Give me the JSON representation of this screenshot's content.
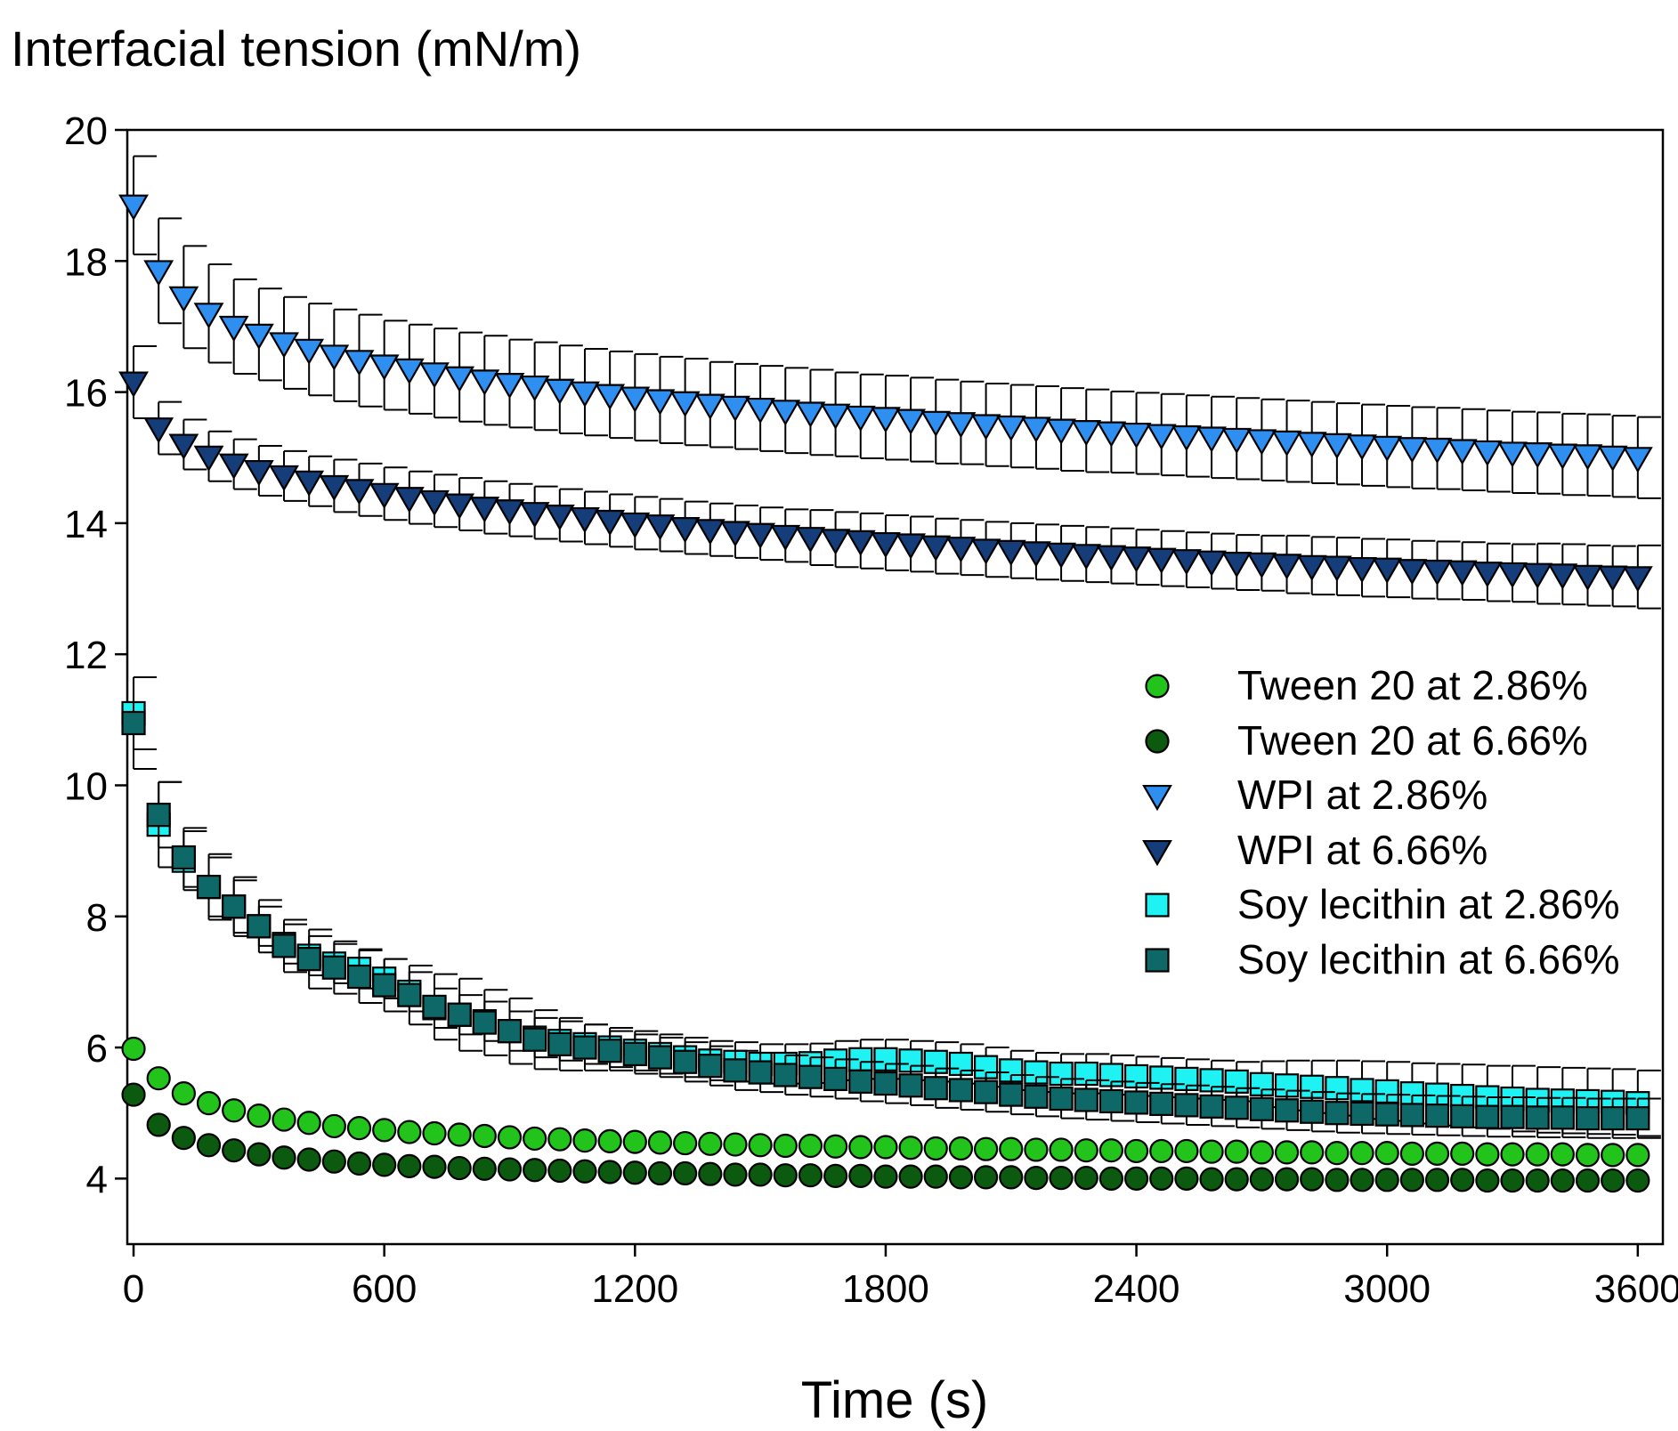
{
  "chart_data": {
    "type": "scatter",
    "title": "",
    "xlabel": "Time (s)",
    "ylabel": "Interfacial tension (mN/m)",
    "xlim": [
      -15,
      3660
    ],
    "ylim": [
      3,
      20
    ],
    "xticks": [
      "0",
      "600",
      "1200",
      "1800",
      "2400",
      "3000",
      "3600"
    ],
    "yticks": [
      "4",
      "6",
      "8",
      "10",
      "12",
      "14",
      "16",
      "18",
      "20"
    ],
    "legend_position": "right-middle",
    "x": [
      0,
      60,
      120,
      180,
      240,
      300,
      360,
      420,
      480,
      540,
      600,
      660,
      720,
      780,
      840,
      900,
      960,
      1020,
      1080,
      1140,
      1200,
      1260,
      1320,
      1380,
      1440,
      1500,
      1560,
      1620,
      1680,
      1740,
      1800,
      1860,
      1920,
      1980,
      2040,
      2100,
      2160,
      2220,
      2280,
      2340,
      2400,
      2460,
      2520,
      2580,
      2640,
      2700,
      2760,
      2820,
      2880,
      2940,
      3000,
      3060,
      3120,
      3180,
      3240,
      3300,
      3360,
      3420,
      3480,
      3540,
      3600
    ],
    "series": [
      {
        "name": "Tween 20 at 2.86%",
        "marker": "circle",
        "color": "#22c41c",
        "values": [
          5.98,
          5.53,
          5.3,
          5.15,
          5.04,
          4.96,
          4.9,
          4.85,
          4.8,
          4.77,
          4.74,
          4.71,
          4.69,
          4.67,
          4.65,
          4.63,
          4.61,
          4.6,
          4.58,
          4.57,
          4.56,
          4.55,
          4.54,
          4.53,
          4.52,
          4.51,
          4.5,
          4.5,
          4.49,
          4.48,
          4.48,
          4.47,
          4.46,
          4.46,
          4.45,
          4.45,
          4.44,
          4.44,
          4.43,
          4.43,
          4.42,
          4.42,
          4.42,
          4.41,
          4.41,
          4.4,
          4.4,
          4.4,
          4.39,
          4.39,
          4.39,
          4.38,
          4.38,
          4.38,
          4.37,
          4.37,
          4.37,
          4.37,
          4.36,
          4.36,
          4.36
        ]
      },
      {
        "name": "Tween 20 at 6.66%",
        "marker": "circle",
        "color": "#0b5a0f",
        "values": [
          5.28,
          4.82,
          4.62,
          4.51,
          4.43,
          4.37,
          4.32,
          4.29,
          4.26,
          4.23,
          4.21,
          4.19,
          4.18,
          4.16,
          4.15,
          4.14,
          4.13,
          4.12,
          4.11,
          4.1,
          4.09,
          4.08,
          4.08,
          4.07,
          4.06,
          4.06,
          4.05,
          4.05,
          4.04,
          4.04,
          4.03,
          4.03,
          4.03,
          4.02,
          4.02,
          4.02,
          4.01,
          4.01,
          4.01,
          4.0,
          4.0,
          4.0,
          4.0,
          3.99,
          3.99,
          3.99,
          3.99,
          3.99,
          3.98,
          3.98,
          3.98,
          3.98,
          3.98,
          3.98,
          3.97,
          3.97,
          3.97,
          3.97,
          3.97,
          3.97,
          3.97
        ]
      },
      {
        "name": "WPI at 2.86%",
        "marker": "triangle-down",
        "color": "#2f8ff0",
        "values": [
          18.85,
          17.85,
          17.45,
          17.2,
          17.0,
          16.88,
          16.75,
          16.65,
          16.56,
          16.48,
          16.41,
          16.35,
          16.29,
          16.23,
          16.18,
          16.13,
          16.09,
          16.04,
          16.0,
          15.96,
          15.92,
          15.88,
          15.85,
          15.81,
          15.78,
          15.75,
          15.72,
          15.69,
          15.66,
          15.63,
          15.61,
          15.58,
          15.55,
          15.53,
          15.5,
          15.48,
          15.46,
          15.43,
          15.41,
          15.39,
          15.37,
          15.35,
          15.33,
          15.31,
          15.29,
          15.27,
          15.25,
          15.23,
          15.21,
          15.19,
          15.17,
          15.15,
          15.14,
          15.12,
          15.1,
          15.08,
          15.07,
          15.05,
          15.04,
          15.02,
          15.0
        ],
        "errors": [
          0.75,
          0.8,
          0.78,
          0.75,
          0.72,
          0.7,
          0.7,
          0.7,
          0.7,
          0.7,
          0.68,
          0.68,
          0.68,
          0.68,
          0.68,
          0.67,
          0.67,
          0.67,
          0.66,
          0.66,
          0.66,
          0.66,
          0.66,
          0.65,
          0.65,
          0.65,
          0.65,
          0.65,
          0.64,
          0.64,
          0.64,
          0.64,
          0.64,
          0.63,
          0.63,
          0.63,
          0.63,
          0.63,
          0.63,
          0.62,
          0.62,
          0.62,
          0.62,
          0.62,
          0.62,
          0.62,
          0.62,
          0.62,
          0.62,
          0.62,
          0.62,
          0.62,
          0.62,
          0.62,
          0.62,
          0.62,
          0.62,
          0.62,
          0.62,
          0.62,
          0.62
        ]
      },
      {
        "name": "WPI at 6.66%",
        "marker": "triangle-down",
        "color": "#153d7a",
        "values": [
          16.15,
          15.45,
          15.2,
          15.02,
          14.9,
          14.8,
          14.72,
          14.64,
          14.57,
          14.51,
          14.45,
          14.39,
          14.34,
          14.29,
          14.24,
          14.2,
          14.16,
          14.12,
          14.08,
          14.04,
          14.0,
          13.97,
          13.93,
          13.9,
          13.87,
          13.84,
          13.81,
          13.78,
          13.75,
          13.73,
          13.7,
          13.68,
          13.65,
          13.63,
          13.6,
          13.58,
          13.56,
          13.54,
          13.52,
          13.5,
          13.48,
          13.46,
          13.44,
          13.42,
          13.4,
          13.39,
          13.37,
          13.35,
          13.34,
          13.32,
          13.31,
          13.29,
          13.28,
          13.27,
          13.25,
          13.24,
          13.23,
          13.22,
          13.2,
          13.19,
          13.18
        ],
        "errors": [
          0.55,
          0.4,
          0.38,
          0.38,
          0.38,
          0.38,
          0.38,
          0.38,
          0.4,
          0.4,
          0.4,
          0.4,
          0.4,
          0.4,
          0.4,
          0.4,
          0.4,
          0.4,
          0.4,
          0.4,
          0.4,
          0.4,
          0.4,
          0.4,
          0.4,
          0.4,
          0.4,
          0.42,
          0.42,
          0.42,
          0.42,
          0.42,
          0.42,
          0.42,
          0.42,
          0.42,
          0.42,
          0.42,
          0.42,
          0.42,
          0.42,
          0.42,
          0.42,
          0.42,
          0.42,
          0.42,
          0.44,
          0.44,
          0.44,
          0.44,
          0.44,
          0.44,
          0.44,
          0.44,
          0.44,
          0.44,
          0.46,
          0.46,
          0.46,
          0.46,
          0.48
        ]
      },
      {
        "name": "Soy lecithin at 2.86%",
        "marker": "square",
        "color": "#1ff2f2",
        "values": [
          11.1,
          9.4,
          8.85,
          8.45,
          8.15,
          7.85,
          7.58,
          7.4,
          7.28,
          7.2,
          7.05,
          6.85,
          6.6,
          6.5,
          6.4,
          6.25,
          6.15,
          6.1,
          6.05,
          6.0,
          5.95,
          5.9,
          5.85,
          5.8,
          5.78,
          5.75,
          5.75,
          5.76,
          5.8,
          5.82,
          5.82,
          5.8,
          5.78,
          5.75,
          5.7,
          5.65,
          5.62,
          5.6,
          5.6,
          5.58,
          5.56,
          5.54,
          5.52,
          5.5,
          5.48,
          5.44,
          5.42,
          5.4,
          5.38,
          5.35,
          5.33,
          5.3,
          5.28,
          5.26,
          5.24,
          5.22,
          5.2,
          5.19,
          5.18,
          5.17,
          5.15
        ],
        "errors": [
          0.55,
          0.65,
          0.45,
          0.45,
          0.4,
          0.3,
          0.3,
          0.3,
          0.3,
          0.3,
          0.3,
          0.3,
          0.3,
          0.3,
          0.3,
          0.3,
          0.3,
          0.3,
          0.3,
          0.3,
          0.3,
          0.3,
          0.3,
          0.3,
          0.3,
          0.3,
          0.3,
          0.3,
          0.3,
          0.3,
          0.3,
          0.3,
          0.3,
          0.3,
          0.3,
          0.3,
          0.3,
          0.3,
          0.3,
          0.3,
          0.3,
          0.3,
          0.3,
          0.3,
          0.3,
          0.35,
          0.38,
          0.4,
          0.42,
          0.44,
          0.45,
          0.46,
          0.47,
          0.48,
          0.48,
          0.5,
          0.5,
          0.5,
          0.5,
          0.5,
          0.5
        ]
      },
      {
        "name": "Soy lecithin at 6.66%",
        "marker": "square",
        "color": "#0f6868",
        "values": [
          10.95,
          9.55,
          8.9,
          8.45,
          8.15,
          7.85,
          7.55,
          7.35,
          7.22,
          7.08,
          6.95,
          6.8,
          6.62,
          6.5,
          6.38,
          6.25,
          6.12,
          6.05,
          6.0,
          5.95,
          5.9,
          5.85,
          5.78,
          5.72,
          5.65,
          5.62,
          5.58,
          5.55,
          5.52,
          5.48,
          5.45,
          5.42,
          5.38,
          5.35,
          5.32,
          5.28,
          5.25,
          5.22,
          5.2,
          5.18,
          5.16,
          5.14,
          5.12,
          5.1,
          5.08,
          5.06,
          5.04,
          5.02,
          5.0,
          4.99,
          4.98,
          4.97,
          4.96,
          4.95,
          4.94,
          4.94,
          4.93,
          4.93,
          4.92,
          4.92,
          4.92
        ],
        "errors": [
          0.7,
          0.5,
          0.45,
          0.5,
          0.45,
          0.4,
          0.4,
          0.45,
          0.4,
          0.4,
          0.4,
          0.45,
          0.5,
          0.55,
          0.5,
          0.5,
          0.45,
          0.4,
          0.35,
          0.3,
          0.3,
          0.3,
          0.3,
          0.3,
          0.3,
          0.3,
          0.3,
          0.3,
          0.3,
          0.3,
          0.3,
          0.3,
          0.3,
          0.3,
          0.3,
          0.3,
          0.3,
          0.3,
          0.3,
          0.3,
          0.3,
          0.3,
          0.3,
          0.3,
          0.3,
          0.3,
          0.3,
          0.3,
          0.3,
          0.3,
          0.3,
          0.3,
          0.3,
          0.3,
          0.3,
          0.3,
          0.3,
          0.3,
          0.3,
          0.3,
          0.3
        ]
      }
    ]
  }
}
